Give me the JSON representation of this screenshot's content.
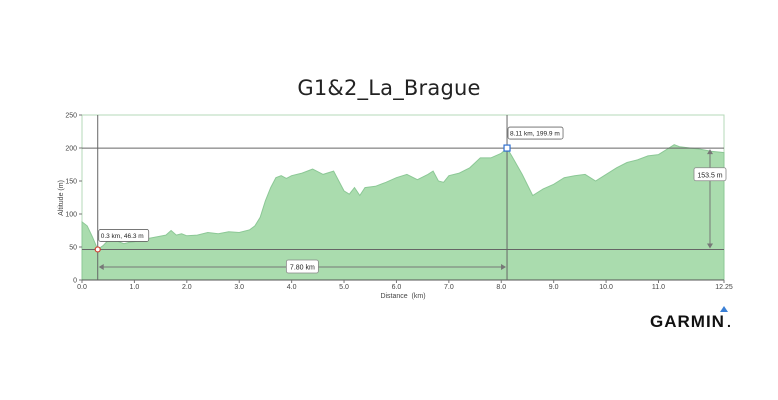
{
  "chart_data": {
    "type": "area",
    "title": "G1&2_La_Brague",
    "xlabel": "Distance  (km)",
    "ylabel": "Altitude (m)",
    "xlim": [
      0,
      12.25
    ],
    "ylim": [
      0,
      250
    ],
    "x_ticks": [
      "0.0",
      "1.0",
      "2.0",
      "3.0",
      "4.0",
      "5.0",
      "6.0",
      "7.0",
      "8.0",
      "9.0",
      "10.0",
      "11.0",
      "12.25"
    ],
    "y_ticks": [
      "0",
      "50",
      "100",
      "150",
      "200",
      "250"
    ],
    "fill_color": "#aadcae",
    "line_color": "#8cc896",
    "x": [
      0,
      0.1,
      0.2,
      0.3,
      0.4,
      0.5,
      0.6,
      0.7,
      0.8,
      0.9,
      1.0,
      1.2,
      1.4,
      1.6,
      1.7,
      1.8,
      1.9,
      2.0,
      2.2,
      2.4,
      2.6,
      2.8,
      3.0,
      3.2,
      3.3,
      3.4,
      3.5,
      3.6,
      3.7,
      3.8,
      3.9,
      4.0,
      4.2,
      4.4,
      4.6,
      4.8,
      5.0,
      5.1,
      5.2,
      5.3,
      5.4,
      5.6,
      5.8,
      6.0,
      6.2,
      6.4,
      6.6,
      6.7,
      6.8,
      6.9,
      7.0,
      7.2,
      7.4,
      7.6,
      7.8,
      8.0,
      8.11,
      8.2,
      8.4,
      8.6,
      8.8,
      9.0,
      9.2,
      9.4,
      9.6,
      9.8,
      10.0,
      10.2,
      10.4,
      10.6,
      10.8,
      11.0,
      11.2,
      11.3,
      11.4,
      11.6,
      11.8,
      12.0,
      12.25
    ],
    "y": [
      88,
      82,
      65,
      46.3,
      52,
      60,
      66,
      58,
      55,
      57,
      58,
      62,
      65,
      68,
      75,
      68,
      70,
      67,
      68,
      72,
      70,
      73,
      72,
      76,
      82,
      95,
      120,
      140,
      155,
      158,
      154,
      158,
      162,
      168,
      160,
      165,
      135,
      130,
      140,
      128,
      140,
      142,
      148,
      155,
      160,
      152,
      160,
      165,
      150,
      148,
      158,
      162,
      170,
      185,
      185,
      192,
      199.9,
      188,
      160,
      128,
      138,
      145,
      155,
      158,
      160,
      150,
      160,
      170,
      178,
      182,
      188,
      190,
      200,
      205,
      202,
      200,
      198,
      195,
      193
    ],
    "annotations": {
      "start_label": "0.3 km, 46.3 m",
      "start_point": {
        "x": 0.3,
        "y": 46.3
      },
      "end_label": "8.11 km, 199.9 m",
      "end_point": {
        "x": 8.11,
        "y": 199.9
      },
      "distance_label": "7.80 km",
      "elevation_label": "153.5 m"
    }
  },
  "logo": {
    "text": "GARMIN",
    "suffix": ".",
    "accent_color": "#3a7fd5"
  }
}
